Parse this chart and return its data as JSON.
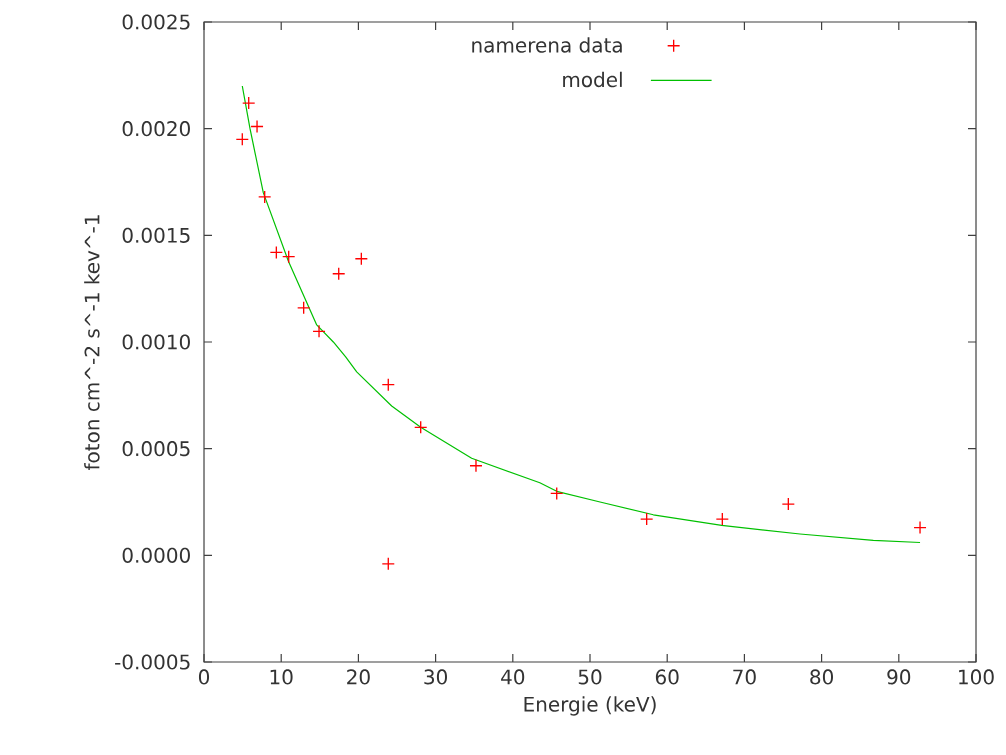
{
  "chart_data": {
    "type": "scatter",
    "xlabel": "Energie (keV)",
    "ylabel": "foton cm^-2 s^-1 kev^-1",
    "xlim": [
      0,
      100
    ],
    "ylim": [
      -0.0005,
      0.0025
    ],
    "xticks": [
      0,
      10,
      20,
      30,
      40,
      50,
      60,
      70,
      80,
      90,
      100
    ],
    "yticks": [
      {
        "value": -0.0005,
        "label": "-0.0005"
      },
      {
        "value": 0,
        "label": "0.0000"
      },
      {
        "value": 0.0005,
        "label": "0.0005"
      },
      {
        "value": 0.001,
        "label": "0.0010"
      },
      {
        "value": 0.0015,
        "label": "0.0015"
      },
      {
        "value": 0.002,
        "label": "0.0020"
      },
      {
        "value": 0.0025,
        "label": "0.0025"
      }
    ],
    "grid": false,
    "legend": "top",
    "series": [
      {
        "name": "namerena data",
        "marker": "cross",
        "color": "#ff0000",
        "x": [
          4.96,
          5.79,
          6.87,
          7.86,
          9.37,
          10.97,
          12.91,
          14.9,
          17.45,
          20.38,
          23.87,
          23.87,
          28.07,
          35.23,
          45.69,
          57.34,
          67.14,
          75.69,
          92.75
        ],
        "values": [
          0.00195,
          0.00212,
          0.00201,
          0.00168,
          0.00142,
          0.0014,
          0.00116,
          0.00105,
          0.00132,
          0.00139,
          0.0008,
          -4e-05,
          0.0006,
          0.00042,
          0.00029,
          0.00017,
          0.00017,
          0.00024,
          0.00013
        ]
      },
      {
        "name": "model",
        "type": "line",
        "marker": "none",
        "line_style": "solid",
        "color": "#00c000",
        "x": [
          4.96,
          5.96,
          7.68,
          10.92,
          14.6,
          16.75,
          18.35,
          19.78,
          24.31,
          28.07,
          34.67,
          43.5,
          45.69,
          51.3,
          58.2,
          67.06,
          77.2,
          86.7,
          92.75
        ],
        "values": [
          0.0022,
          0.002,
          0.0017,
          0.00138,
          0.00108,
          0.001,
          0.00093,
          0.00086,
          0.0007,
          0.0006,
          0.000455,
          0.00034,
          0.0003,
          0.00025,
          0.00019,
          0.00014,
          0.0001,
          7e-05,
          6e-05
        ]
      }
    ]
  }
}
